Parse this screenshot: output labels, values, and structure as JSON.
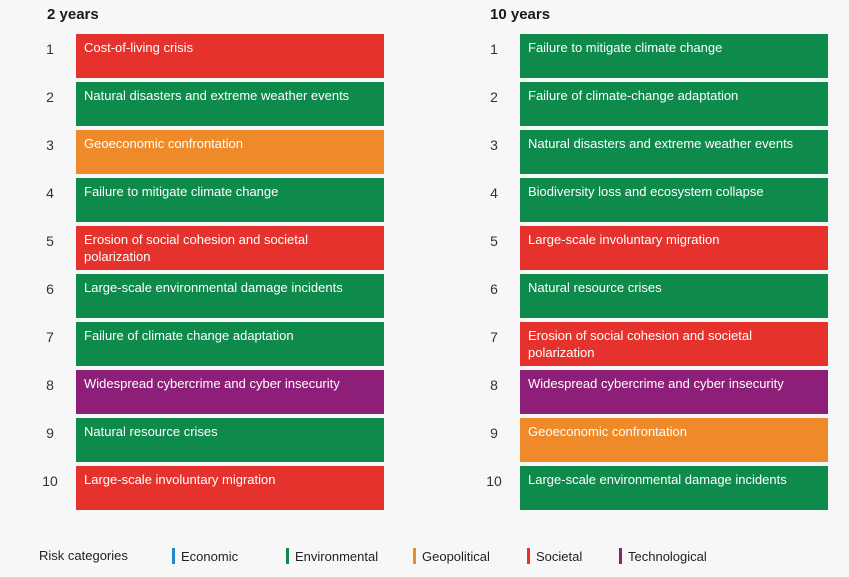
{
  "columns": [
    {
      "title": "2 years",
      "risks": [
        {
          "rank": "1",
          "label": "Cost-of-living crisis",
          "category": "Societal",
          "color": "#e5322c"
        },
        {
          "rank": "2",
          "label": "Natural disasters and extreme weather events",
          "category": "Environmental",
          "color": "#0e8a4a"
        },
        {
          "rank": "3",
          "label": "Geoeconomic confrontation",
          "category": "Geopolitical",
          "color": "#ef8a2a"
        },
        {
          "rank": "4",
          "label": "Failure to mitigate climate change",
          "category": "Environmental",
          "color": "#0e8a4a"
        },
        {
          "rank": "5",
          "label": "Erosion of social cohesion and societal polarization",
          "category": "Societal",
          "color": "#e5322c"
        },
        {
          "rank": "6",
          "label": "Large-scale environmental damage incidents",
          "category": "Environmental",
          "color": "#0e8a4a"
        },
        {
          "rank": "7",
          "label": "Failure of climate change adaptation",
          "category": "Environmental",
          "color": "#0e8a4a"
        },
        {
          "rank": "8",
          "label": "Widespread cybercrime and cyber insecurity",
          "category": "Technological",
          "color": "#8e1f79"
        },
        {
          "rank": "9",
          "label": "Natural resource crises",
          "category": "Environmental",
          "color": "#0e8a4a"
        },
        {
          "rank": "10",
          "label": "Large-scale involuntary migration",
          "category": "Societal",
          "color": "#e5322c"
        }
      ]
    },
    {
      "title": "10 years",
      "risks": [
        {
          "rank": "1",
          "label": "Failure to mitigate climate change",
          "category": "Environmental",
          "color": "#0e8a4a"
        },
        {
          "rank": "2",
          "label": "Failure of climate-change adaptation",
          "category": "Environmental",
          "color": "#0e8a4a"
        },
        {
          "rank": "3",
          "label": "Natural disasters and extreme weather events",
          "category": "Environmental",
          "color": "#0e8a4a"
        },
        {
          "rank": "4",
          "label": "Biodiversity loss and ecosystem collapse",
          "category": "Environmental",
          "color": "#0e8a4a"
        },
        {
          "rank": "5",
          "label": "Large-scale involuntary migration",
          "category": "Societal",
          "color": "#e5322c"
        },
        {
          "rank": "6",
          "label": "Natural resource crises",
          "category": "Environmental",
          "color": "#0e8a4a"
        },
        {
          "rank": "7",
          "label": "Erosion of social cohesion and societal polarization",
          "category": "Societal",
          "color": "#e5322c"
        },
        {
          "rank": "8",
          "label": "Widespread cybercrime and cyber insecurity",
          "category": "Technological",
          "color": "#8e1f79"
        },
        {
          "rank": "9",
          "label": "Geoeconomic confrontation",
          "category": "Geopolitical",
          "color": "#ef8a2a"
        },
        {
          "rank": "10",
          "label": "Large-scale environmental damage incidents",
          "category": "Environmental",
          "color": "#0e8a4a"
        }
      ]
    }
  ],
  "legend": {
    "title": "Risk categories",
    "items": [
      {
        "label": "Economic",
        "color": "#1f8ac9"
      },
      {
        "label": "Environmental",
        "color": "#0e8a4a"
      },
      {
        "label": "Geopolitical",
        "color": "#ef8a2a"
      },
      {
        "label": "Societal",
        "color": "#e5322c"
      },
      {
        "label": "Technological",
        "color": "#8e1f79"
      }
    ]
  }
}
